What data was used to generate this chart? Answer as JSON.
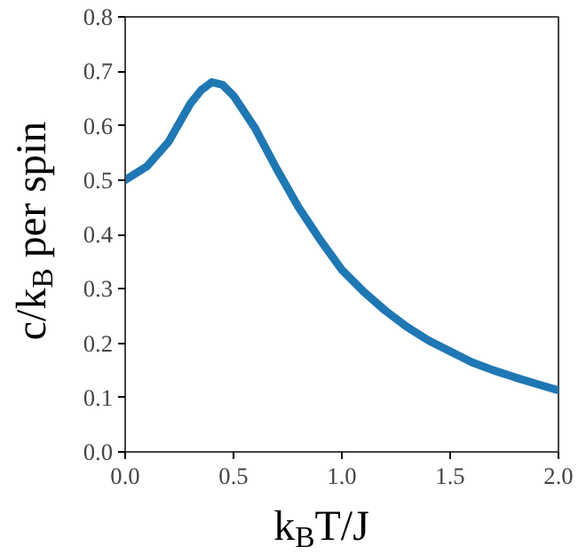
{
  "chart_data": {
    "type": "line",
    "xlabel": "k$_{B}$T/J",
    "ylabel": "c/k$_{B}$ per spin",
    "x": [
      0,
      0.1,
      0.2,
      0.3,
      0.35,
      0.4,
      0.45,
      0.5,
      0.6,
      0.7,
      0.8,
      0.9,
      1.0,
      1.1,
      1.2,
      1.3,
      1.4,
      1.5,
      1.6,
      1.7,
      1.8,
      1.9,
      2.0
    ],
    "series": [
      {
        "color": "#1f77b4",
        "values": [
          0.5,
          0.525,
          0.57,
          0.64,
          0.665,
          0.68,
          0.675,
          0.655,
          0.595,
          0.52,
          0.45,
          0.39,
          0.335,
          0.295,
          0.26,
          0.23,
          0.205,
          0.185,
          0.165,
          0.15,
          0.137,
          0.125,
          0.113
        ]
      }
    ],
    "xlim": [
      0,
      2.0
    ],
    "ylim": [
      0,
      0.8
    ],
    "xticks": [
      {
        "value": 0,
        "label": "0.0"
      },
      0.5,
      {
        "value": 1,
        "label": "1.0"
      },
      1.5,
      {
        "value": 2,
        "label": "2.0"
      }
    ],
    "yticks": [
      {
        "value": 0,
        "label": "0.0"
      },
      0.1,
      0.2,
      0.3,
      0.4,
      0.5,
      0.6,
      0.7,
      0.8
    ],
    "grid": false,
    "line_style": "solid",
    "marker": "none"
  }
}
